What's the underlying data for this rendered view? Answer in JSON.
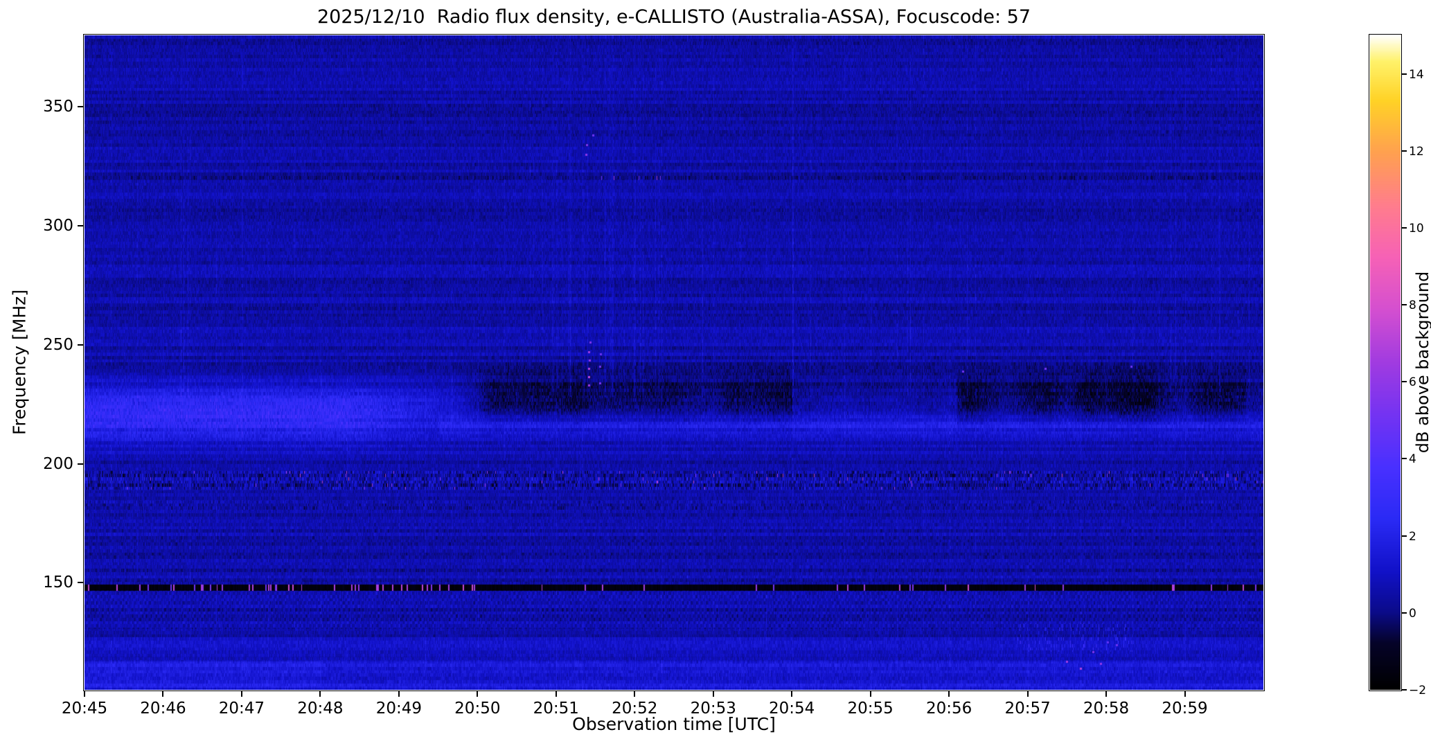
{
  "chart_data": {
    "type": "heatmap",
    "title": "2025/12/10  Radio flux density, e-CALLISTO (Australia-ASSA), Focuscode: 57",
    "xlabel": "Observation time [UTC]",
    "ylabel": "Frequency [MHz]",
    "colorbar_label": "dB above background",
    "x_ticks": [
      "20:45",
      "20:46",
      "20:47",
      "20:48",
      "20:49",
      "20:50",
      "20:51",
      "20:52",
      "20:53",
      "20:54",
      "20:55",
      "20:56",
      "20:57",
      "20:58",
      "20:59"
    ],
    "x_range_minutes": 15,
    "y_ticks": [
      150,
      200,
      250,
      300,
      350
    ],
    "y_range": [
      105,
      380
    ],
    "colorbar_ticks": [
      -2,
      0,
      2,
      4,
      6,
      8,
      10,
      12,
      14
    ],
    "colorbar_tick_labels": [
      "−2",
      "0",
      "2",
      "4",
      "6",
      "8",
      "10",
      "12",
      "14"
    ],
    "colorbar_range": [
      -2,
      15
    ],
    "grid": false,
    "legend": false,
    "background_level_db": 0.5,
    "colormap_stops": [
      {
        "t": 0.0,
        "color": "#000000"
      },
      {
        "t": 0.07,
        "color": "#050328"
      },
      {
        "t": 0.118,
        "color": "#0b0b8a"
      },
      {
        "t": 0.18,
        "color": "#1111c8"
      },
      {
        "t": 0.26,
        "color": "#2a2af5"
      },
      {
        "t": 0.34,
        "color": "#4930ff"
      },
      {
        "t": 0.42,
        "color": "#7433f2"
      },
      {
        "t": 0.5,
        "color": "#a13be0"
      },
      {
        "t": 0.58,
        "color": "#d44fd0"
      },
      {
        "t": 0.66,
        "color": "#f661b6"
      },
      {
        "t": 0.74,
        "color": "#ff7d8c"
      },
      {
        "t": 0.82,
        "color": "#ffa050"
      },
      {
        "t": 0.9,
        "color": "#ffd226"
      },
      {
        "t": 0.96,
        "color": "#fff26a"
      },
      {
        "t": 1.0,
        "color": "#ffffff"
      }
    ],
    "features": [
      {
        "kind": "emission-band",
        "freq_mhz": [
          208,
          234
        ],
        "time_utc": [
          "20:45",
          "20:48.5"
        ],
        "peak_db": 3,
        "note": "bright blue emission band, strongest at start of observation"
      },
      {
        "kind": "absorption-patches",
        "freq_mhz": [
          216,
          238
        ],
        "time_utc": [
          "20:50",
          "21:00"
        ],
        "min_db": -1.2,
        "note": "patchy dark smudges over the band in the second half"
      },
      {
        "kind": "interference-line",
        "freq_mhz": 148,
        "level_db": -2,
        "note": "black horizontal line with scattered magenta speckles up to ~8 dB"
      },
      {
        "kind": "noisy-band",
        "freq_mhz": [
          189,
          197
        ],
        "note": "speckled RFI band with occasional magenta pixels"
      },
      {
        "kind": "vertical-bursts",
        "time_utc": [
          "20:51",
          "20:52"
        ],
        "freq_mhz": [
          228,
          345
        ],
        "peak_db": 7,
        "note": "faint vertical streaks with pink dots near 235-250 MHz and ~330 MHz"
      },
      {
        "kind": "bottom-bands",
        "freq_mhz": [
          105,
          130
        ],
        "level_db": 1.2,
        "note": "brighter horizontal bands at bottom; magenta dots near 20:57-20:58 around 114-125 MHz"
      },
      {
        "kind": "faint-line",
        "freq_mhz": 320,
        "level_db": -0.5,
        "note": "faint dark horizontal line"
      }
    ]
  }
}
